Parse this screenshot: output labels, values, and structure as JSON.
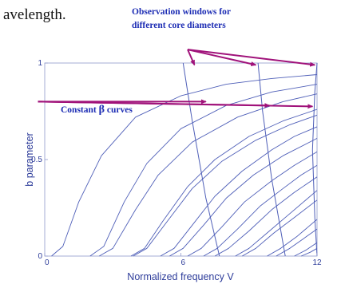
{
  "page": {
    "top_text": "avelength."
  },
  "annotations": {
    "observation_line1": "Observation windows for",
    "observation_line2": "different core diameters",
    "constant_prefix": "Constant ",
    "constant_symbol": "β",
    "constant_suffix": " curves"
  },
  "colors": {
    "curve": "#4f5fb8",
    "arrow": "#a0127a",
    "annotation_text": "#1d2db4",
    "axis_text": "#2d3c9a"
  },
  "chart_data": {
    "type": "line",
    "xlabel": "Normalized frequency V",
    "ylabel": "b parameter",
    "xlim": [
      0,
      12
    ],
    "ylim": [
      0,
      1
    ],
    "x_ticks": [
      0,
      6,
      12
    ],
    "y_ticks": [
      0,
      0.5,
      1
    ],
    "x_tick_labels": [
      "0",
      "6",
      "12"
    ],
    "y_tick_labels": [
      "0",
      "0.5",
      "1"
    ],
    "grid": false,
    "series": [
      {
        "points": [
          [
            0.3,
            0.0
          ],
          [
            0.8,
            0.05
          ],
          [
            1.5,
            0.28
          ],
          [
            2.5,
            0.52
          ],
          [
            4,
            0.72
          ],
          [
            6,
            0.83
          ],
          [
            8,
            0.89
          ],
          [
            10,
            0.92
          ],
          [
            12,
            0.94
          ]
        ]
      },
      {
        "points": [
          [
            2.0,
            0.0
          ],
          [
            2.6,
            0.05
          ],
          [
            3.5,
            0.28
          ],
          [
            4.5,
            0.48
          ],
          [
            6,
            0.66
          ],
          [
            8,
            0.78
          ],
          [
            10,
            0.85
          ],
          [
            12,
            0.89
          ]
        ]
      },
      {
        "points": [
          [
            2.4,
            0.0
          ],
          [
            3.0,
            0.04
          ],
          [
            4.0,
            0.24
          ],
          [
            5,
            0.42
          ],
          [
            6.5,
            0.59
          ],
          [
            8.5,
            0.72
          ],
          [
            10.5,
            0.8
          ],
          [
            12,
            0.84
          ]
        ]
      },
      {
        "points": [
          [
            3.8,
            0.0
          ],
          [
            4.4,
            0.04
          ],
          [
            5.2,
            0.18
          ],
          [
            6.3,
            0.36
          ],
          [
            7.5,
            0.5
          ],
          [
            9,
            0.62
          ],
          [
            10.5,
            0.7
          ],
          [
            12,
            0.76
          ]
        ]
      },
      {
        "points": [
          [
            3.9,
            0.0
          ],
          [
            4.5,
            0.04
          ],
          [
            5.4,
            0.18
          ],
          [
            6.5,
            0.35
          ],
          [
            7.8,
            0.49
          ],
          [
            9.3,
            0.6
          ],
          [
            10.8,
            0.68
          ],
          [
            12,
            0.73
          ]
        ]
      },
      {
        "points": [
          [
            5.1,
            0.0
          ],
          [
            5.7,
            0.04
          ],
          [
            6.5,
            0.16
          ],
          [
            7.5,
            0.31
          ],
          [
            8.7,
            0.44
          ],
          [
            10,
            0.55
          ],
          [
            11,
            0.62
          ],
          [
            12,
            0.67
          ]
        ]
      },
      {
        "points": [
          [
            5.5,
            0.0
          ],
          [
            6.1,
            0.04
          ],
          [
            7.0,
            0.16
          ],
          [
            8.0,
            0.3
          ],
          [
            9.2,
            0.42
          ],
          [
            10.5,
            0.52
          ],
          [
            12,
            0.61
          ]
        ]
      },
      {
        "points": [
          [
            6.3,
            0.0
          ],
          [
            6.9,
            0.04
          ],
          [
            7.8,
            0.15
          ],
          [
            8.8,
            0.28
          ],
          [
            10,
            0.39
          ],
          [
            11,
            0.47
          ],
          [
            12,
            0.54
          ]
        ]
      },
      {
        "points": [
          [
            7.0,
            0.0
          ],
          [
            7.6,
            0.04
          ],
          [
            8.5,
            0.14
          ],
          [
            9.5,
            0.26
          ],
          [
            10.5,
            0.35
          ],
          [
            11.3,
            0.42
          ],
          [
            12,
            0.47
          ]
        ]
      },
      {
        "points": [
          [
            7.5,
            0.0
          ],
          [
            8.1,
            0.04
          ],
          [
            9.0,
            0.13
          ],
          [
            10,
            0.24
          ],
          [
            11,
            0.33
          ],
          [
            12,
            0.41
          ]
        ]
      },
      {
        "points": [
          [
            8.4,
            0.0
          ],
          [
            9.0,
            0.04
          ],
          [
            9.8,
            0.12
          ],
          [
            10.7,
            0.21
          ],
          [
            11.4,
            0.28
          ],
          [
            12,
            0.34
          ]
        ]
      },
      {
        "points": [
          [
            8.7,
            0.0
          ],
          [
            9.3,
            0.04
          ],
          [
            10.1,
            0.12
          ],
          [
            11,
            0.2
          ],
          [
            12,
            0.29
          ]
        ]
      },
      {
        "points": [
          [
            9.8,
            0.0
          ],
          [
            10.4,
            0.04
          ],
          [
            11.1,
            0.1
          ],
          [
            11.6,
            0.15
          ],
          [
            12,
            0.19
          ]
        ]
      },
      {
        "points": [
          [
            10.2,
            0.0
          ],
          [
            10.8,
            0.04
          ],
          [
            11.4,
            0.09
          ],
          [
            12,
            0.14
          ]
        ]
      },
      {
        "points": [
          [
            11.0,
            0.0
          ],
          [
            11.5,
            0.03
          ],
          [
            12,
            0.07
          ]
        ]
      },
      {
        "points": [
          [
            11.3,
            0.0
          ],
          [
            11.7,
            0.02
          ],
          [
            12,
            0.04
          ]
        ]
      }
    ],
    "window_lines": [
      {
        "points": [
          [
            6.1,
            1.0
          ],
          [
            6.5,
            0.7
          ],
          [
            7.1,
            0.3
          ],
          [
            7.7,
            0.0
          ]
        ]
      },
      {
        "points": [
          [
            9.4,
            1.0
          ],
          [
            9.6,
            0.75
          ],
          [
            10.0,
            0.4
          ],
          [
            10.6,
            0.0
          ]
        ]
      },
      {
        "points": [
          [
            12.0,
            1.0
          ],
          [
            11.9,
            0.85
          ],
          [
            11.8,
            0.55
          ],
          [
            11.9,
            0.2
          ],
          [
            12.0,
            0.0
          ]
        ]
      }
    ],
    "annotation_arrows": [
      {
        "group": "observation",
        "from": [
          6.3,
          1.07
        ],
        "to": [
          6.6,
          0.99
        ]
      },
      {
        "group": "observation",
        "from": [
          6.3,
          1.07
        ],
        "to": [
          9.3,
          0.99
        ]
      },
      {
        "group": "observation",
        "from": [
          6.3,
          1.07
        ],
        "to": [
          11.9,
          0.99
        ]
      },
      {
        "group": "constant",
        "from": [
          -0.3,
          0.8
        ],
        "to": [
          7.1,
          0.8
        ]
      },
      {
        "group": "constant",
        "from": [
          -0.3,
          0.8
        ],
        "to": [
          9.9,
          0.78
        ]
      },
      {
        "group": "constant",
        "from": [
          -0.3,
          0.8
        ],
        "to": [
          11.8,
          0.775
        ]
      }
    ]
  }
}
